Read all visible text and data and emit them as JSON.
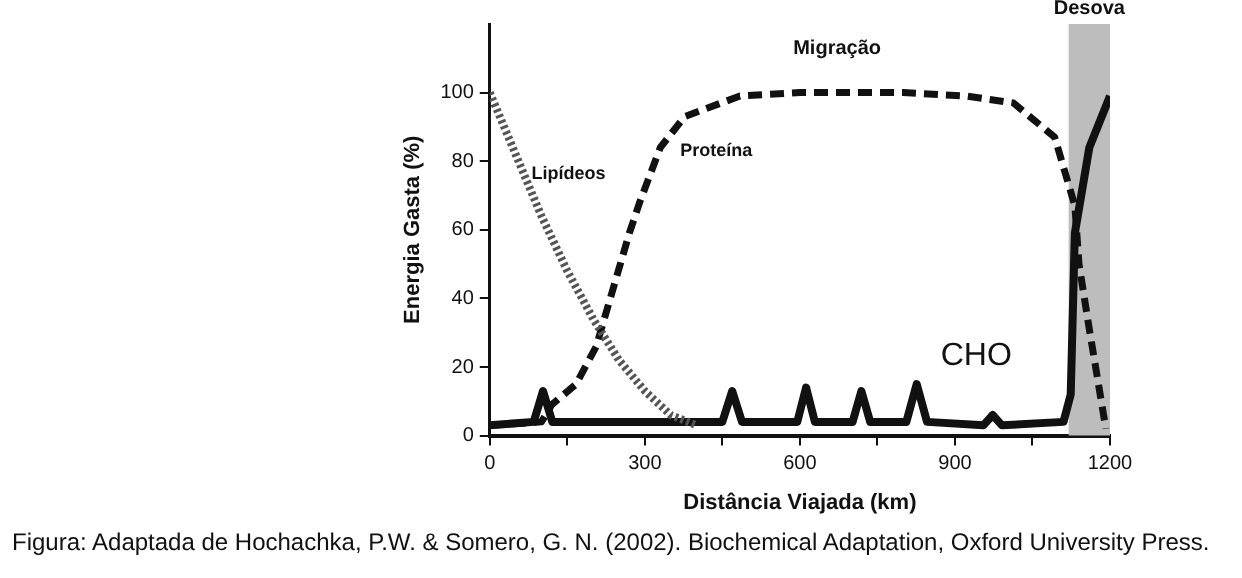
{
  "chart_data": {
    "type": "line",
    "xlabel": "Distância Viajada (km)",
    "ylabel": "Energia Gasta (%)",
    "xlim": [
      0,
      1200
    ],
    "ylim": [
      0,
      120
    ],
    "xticks": [
      0,
      {
        "value": 150,
        "label": null
      },
      300,
      {
        "value": 450,
        "label": null
      },
      600,
      {
        "value": 750,
        "label": null
      },
      900,
      {
        "value": 1050,
        "label": null
      },
      1200
    ],
    "yticks": [
      0,
      20,
      40,
      60,
      80,
      100
    ],
    "grid": false,
    "legend": false,
    "marker": "none",
    "series": [
      {
        "name": "Lipídeos",
        "color": "#555555",
        "line_style": "dotted",
        "x": [
          0,
          50,
          100,
          150,
          200,
          250,
          300,
          350,
          400
        ],
        "values": [
          100,
          82,
          64,
          48,
          34,
          22,
          13,
          6,
          3
        ]
      },
      {
        "name": "Proteína",
        "color": "#111111",
        "line_style": "dashed",
        "x": [
          0,
          100,
          120,
          167,
          206,
          270,
          290,
          330,
          377,
          484,
          600,
          800,
          922,
          1013,
          1093,
          1132,
          1140,
          1160,
          1192
        ],
        "values": [
          3,
          4,
          9,
          15,
          26,
          59,
          68,
          84,
          93,
          99,
          100,
          100,
          99,
          97,
          87,
          67,
          50,
          31,
          2
        ]
      },
      {
        "name": "CHO",
        "color": "#111111",
        "line_style": "solid",
        "x": [
          0,
          85,
          103,
          121,
          450,
          469,
          488,
          595,
          612,
          629,
          702,
          719,
          736,
          806,
          826,
          846,
          955,
          973,
          991,
          1110,
          1124,
          1132,
          1160,
          1200
        ],
        "values": [
          3,
          4,
          13,
          4,
          4,
          13,
          4,
          4,
          14,
          4,
          4,
          13,
          4,
          4,
          15,
          4,
          3,
          6,
          3,
          4,
          12,
          59,
          84,
          99
        ]
      }
    ],
    "bands": [
      {
        "axis": "x",
        "from": 1120,
        "to": 1200,
        "label": "Desova",
        "color": "#bdbdbd"
      }
    ],
    "annotations": [
      "Migração",
      "Figura: Adaptada de Hochachka, P.W. & Somero, G. N. (2002). Biochemical Adaptation, Oxford University Press."
    ]
  }
}
